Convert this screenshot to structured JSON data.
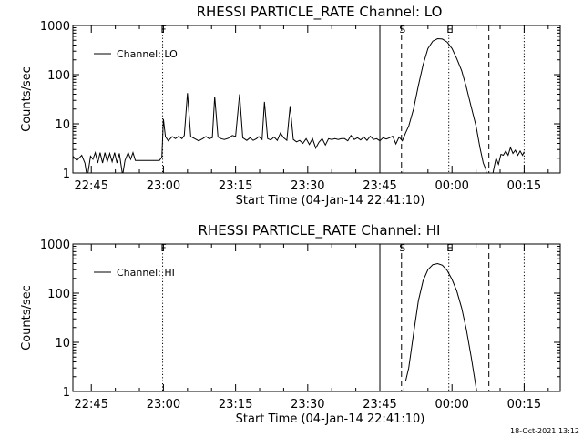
{
  "footer": {
    "stamp": "18-Oct-2021 13:12"
  },
  "chart_data": [
    {
      "type": "line",
      "title": "RHESSI PARTICLE_RATE Channel: LO",
      "xlabel": "Start Time (04-Jan-14 22:41:10)",
      "ylabel": "Counts/sec",
      "yscale": "log",
      "xlim": [
        "22:41:10",
        "00:22:30"
      ],
      "ylim": [
        1,
        1000
      ],
      "xticks": [
        "22:45",
        "23:00",
        "23:15",
        "23:30",
        "23:45",
        "00:00",
        "00:15"
      ],
      "yticks": [
        "1",
        "10",
        "100",
        "1000"
      ],
      "legend": {
        "label": "Channel: LO",
        "placement": "top-left"
      },
      "markers": [
        {
          "label": "F",
          "time": "22:59:50",
          "style": "dotted"
        },
        {
          "label": "",
          "time": "23:45:00",
          "style": "solid"
        },
        {
          "label": "S",
          "time": "23:49:30",
          "style": "dashed"
        },
        {
          "label": "E",
          "time": "23:59:20",
          "style": "dotted"
        },
        {
          "label": "",
          "time": "00:07:40",
          "style": "dashed"
        },
        {
          "label": "",
          "time": "00:15:00",
          "style": "dotted"
        }
      ],
      "series": [
        {
          "name": "Channel: LO",
          "segments": [
            [
              [
                "22:41:10",
                2.2
              ],
              [
                "22:42:00",
                1.8
              ],
              [
                "22:43:00",
                2.3
              ],
              [
                "22:43:40",
                1.6
              ],
              [
                "22:44:10",
                0.8
              ],
              [
                "22:44:50",
                2.2
              ],
              [
                "22:45:20",
                1.9
              ],
              [
                "22:45:50",
                2.6
              ],
              [
                "22:46:20",
                1.6
              ],
              [
                "22:46:50",
                2.6
              ],
              [
                "22:47:20",
                1.6
              ],
              [
                "22:47:50",
                2.6
              ],
              [
                "22:48:20",
                1.7
              ],
              [
                "22:48:50",
                2.5
              ],
              [
                "22:49:20",
                1.7
              ],
              [
                "22:49:50",
                2.6
              ],
              [
                "22:50:20",
                1.6
              ],
              [
                "22:50:50",
                2.5
              ],
              [
                "22:51:30",
                0.9
              ],
              [
                "22:52:00",
                1.8
              ],
              [
                "22:52:40",
                2.6
              ],
              [
                "22:53:10",
                1.9
              ],
              [
                "22:53:40",
                2.6
              ],
              [
                "22:54:10",
                1.8
              ],
              [
                "22:55:00",
                1.8
              ],
              [
                "22:58:00",
                1.8
              ],
              [
                "22:59:10",
                1.8
              ],
              [
                "22:59:40",
                2.1
              ],
              [
                "23:00:00",
                12.5
              ],
              [
                "23:00:25",
                5.5
              ],
              [
                "23:01:00",
                4.5
              ],
              [
                "23:01:50",
                5.5
              ],
              [
                "23:02:30",
                5.0
              ],
              [
                "23:03:10",
                5.6
              ],
              [
                "23:03:50",
                5.0
              ],
              [
                "23:04:20",
                5.8
              ],
              [
                "23:05:00",
                42
              ],
              [
                "23:05:40",
                5.5
              ],
              [
                "23:06:30",
                5.0
              ],
              [
                "23:07:20",
                4.5
              ],
              [
                "23:08:10",
                5.0
              ],
              [
                "23:08:50",
                5.5
              ],
              [
                "23:09:30",
                5.0
              ],
              [
                "23:10:10",
                5.2
              ],
              [
                "23:10:40",
                36
              ],
              [
                "23:11:20",
                5.4
              ],
              [
                "23:12:00",
                5.0
              ],
              [
                "23:12:40",
                4.8
              ],
              [
                "23:13:30",
                5.1
              ],
              [
                "23:14:20",
                5.8
              ],
              [
                "23:15:00",
                5.5
              ],
              [
                "23:15:50",
                40
              ],
              [
                "23:16:30",
                5.2
              ],
              [
                "23:17:20",
                4.6
              ],
              [
                "23:18:00",
                5.2
              ],
              [
                "23:18:40",
                4.6
              ],
              [
                "23:19:20",
                5.0
              ],
              [
                "23:19:50",
                5.5
              ],
              [
                "23:20:30",
                4.8
              ],
              [
                "23:21:00",
                28
              ],
              [
                "23:21:40",
                5.0
              ],
              [
                "23:22:20",
                4.7
              ],
              [
                "23:23:00",
                5.4
              ],
              [
                "23:23:40",
                4.6
              ],
              [
                "23:24:20",
                6.5
              ],
              [
                "23:25:00",
                5.2
              ],
              [
                "23:25:40",
                4.6
              ],
              [
                "23:26:20",
                23
              ],
              [
                "23:27:00",
                4.8
              ],
              [
                "23:27:40",
                4.3
              ],
              [
                "23:28:20",
                4.6
              ],
              [
                "23:29:00",
                4.0
              ],
              [
                "23:29:40",
                5.0
              ],
              [
                "23:30:20",
                3.8
              ],
              [
                "23:31:00",
                5.0
              ],
              [
                "23:31:40",
                3.2
              ],
              [
                "23:32:20",
                4.2
              ],
              [
                "23:33:00",
                5.0
              ],
              [
                "23:33:40",
                3.7
              ],
              [
                "23:34:20",
                5.0
              ],
              [
                "23:35:00",
                4.8
              ],
              [
                "23:35:40",
                5.0
              ],
              [
                "23:36:20",
                4.8
              ],
              [
                "23:37:00",
                5.0
              ],
              [
                "23:37:40",
                5.0
              ],
              [
                "23:38:20",
                4.5
              ],
              [
                "23:39:00",
                5.8
              ],
              [
                "23:39:40",
                4.8
              ],
              [
                "23:40:20",
                5.2
              ],
              [
                "23:41:00",
                4.7
              ],
              [
                "23:41:40",
                5.4
              ],
              [
                "23:42:20",
                4.6
              ],
              [
                "23:43:00",
                5.6
              ],
              [
                "23:43:40",
                4.8
              ],
              [
                "23:44:20",
                5.0
              ],
              [
                "23:45:00",
                4.5
              ],
              [
                "23:45:40",
                5.2
              ],
              [
                "23:46:20",
                4.9
              ],
              [
                "23:47:00",
                5.2
              ],
              [
                "23:47:40",
                5.6
              ],
              [
                "23:48:20",
                3.9
              ],
              [
                "23:49:00",
                5.4
              ],
              [
                "23:49:40",
                4.5
              ],
              [
                "23:50:20",
                6.5
              ],
              [
                "23:51:00",
                9.0
              ],
              [
                "23:52:00",
                20
              ],
              [
                "23:53:00",
                60
              ],
              [
                "23:54:00",
                160
              ],
              [
                "23:55:00",
                340
              ],
              [
                "23:56:00",
                480
              ],
              [
                "23:57:00",
                540
              ],
              [
                "23:58:00",
                530
              ],
              [
                "23:59:00",
                460
              ],
              [
                "00:00:00",
                340
              ],
              [
                "00:01:00",
                210
              ],
              [
                "00:02:00",
                120
              ],
              [
                "00:03:00",
                55
              ],
              [
                "00:04:00",
                22
              ],
              [
                "00:05:00",
                9
              ],
              [
                "00:05:50",
                3.2
              ],
              [
                "00:06:30",
                1.6
              ],
              [
                "00:07:00",
                1.2
              ],
              [
                "00:07:20",
                0.8
              ]
            ],
            [
              [
                "00:08:20",
                0.8
              ],
              [
                "00:08:40",
                1.2
              ],
              [
                "00:09:10",
                2.0
              ],
              [
                "00:09:40",
                1.5
              ],
              [
                "00:10:10",
                2.4
              ],
              [
                "00:10:40",
                2.3
              ],
              [
                "00:11:10",
                2.8
              ],
              [
                "00:11:40",
                2.3
              ],
              [
                "00:12:10",
                3.3
              ],
              [
                "00:12:40",
                2.5
              ],
              [
                "00:13:10",
                2.9
              ],
              [
                "00:13:40",
                2.3
              ],
              [
                "00:14:10",
                2.8
              ],
              [
                "00:14:40",
                2.3
              ],
              [
                "00:15:00",
                2.7
              ]
            ]
          ]
        }
      ]
    },
    {
      "type": "line",
      "title": "RHESSI PARTICLE_RATE Channel: HI",
      "xlabel": "Start Time (04-Jan-14 22:41:10)",
      "ylabel": "Counts/sec",
      "yscale": "log",
      "xlim": [
        "22:41:10",
        "00:22:30"
      ],
      "ylim": [
        1,
        1000
      ],
      "xticks": [
        "22:45",
        "23:00",
        "23:15",
        "23:30",
        "23:45",
        "00:00",
        "00:15"
      ],
      "yticks": [
        "1",
        "10",
        "100",
        "1000"
      ],
      "legend": {
        "label": "Channel: HI",
        "placement": "top-left"
      },
      "markers": [
        {
          "label": "F",
          "time": "22:59:50",
          "style": "dotted"
        },
        {
          "label": "",
          "time": "23:45:00",
          "style": "solid"
        },
        {
          "label": "S",
          "time": "23:49:30",
          "style": "dashed"
        },
        {
          "label": "E",
          "time": "23:59:20",
          "style": "dotted"
        },
        {
          "label": "",
          "time": "00:07:40",
          "style": "dashed"
        },
        {
          "label": "",
          "time": "00:15:00",
          "style": "dotted"
        }
      ],
      "series": [
        {
          "name": "Channel: HI",
          "segments": [
            [
              [
                "23:50:20",
                1.6
              ],
              [
                "23:51:00",
                3.0
              ],
              [
                "23:52:00",
                15
              ],
              [
                "23:53:00",
                70
              ],
              [
                "23:54:00",
                180
              ],
              [
                "23:55:00",
                300
              ],
              [
                "23:56:00",
                380
              ],
              [
                "23:57:00",
                400
              ],
              [
                "23:58:00",
                370
              ],
              [
                "23:59:00",
                290
              ],
              [
                "00:00:00",
                190
              ],
              [
                "00:01:00",
                110
              ],
              [
                "00:02:00",
                50
              ],
              [
                "00:03:00",
                18
              ],
              [
                "00:04:00",
                5
              ],
              [
                "00:05:00",
                1.2
              ],
              [
                "00:05:20",
                0.8
              ]
            ]
          ]
        }
      ]
    }
  ]
}
